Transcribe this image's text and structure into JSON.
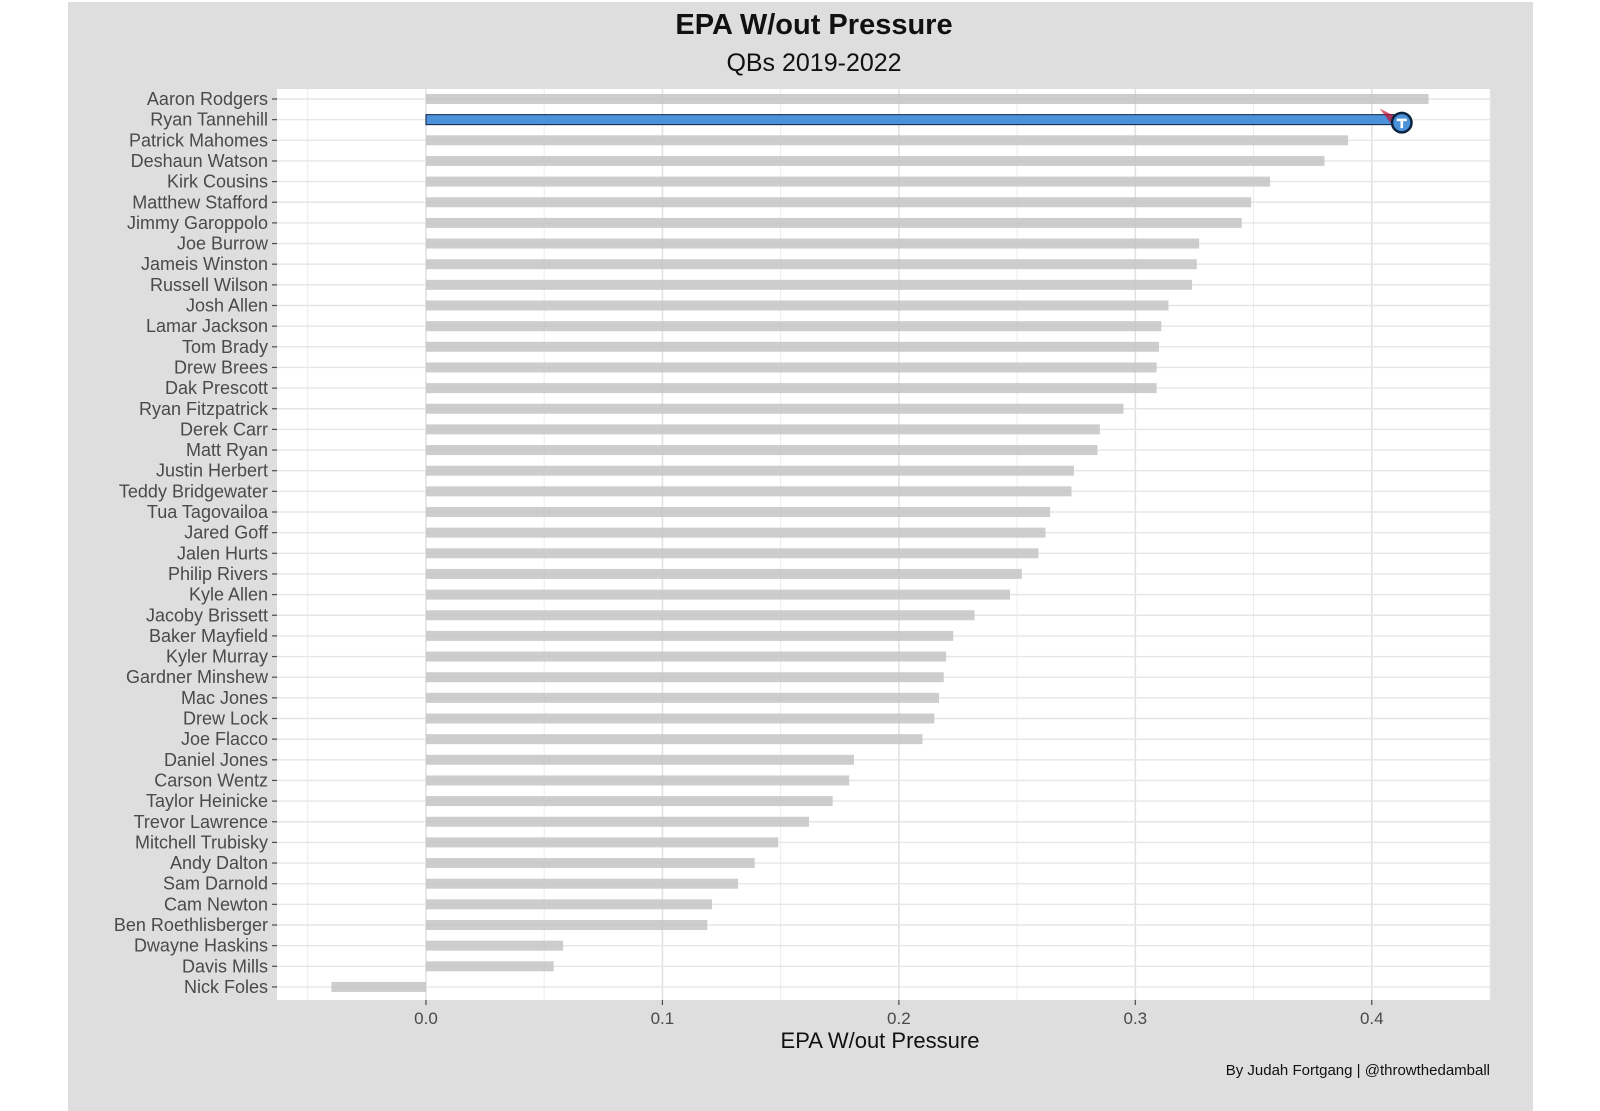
{
  "chart_data": {
    "type": "bar",
    "orientation": "horizontal",
    "title": "EPA W/out Pressure",
    "subtitle": "QBs 2019-2022",
    "xlabel": "EPA W/out Pressure",
    "ylabel": "",
    "caption": "By Judah Fortgang | @throwthedamball",
    "xlim": [
      -0.063,
      0.45
    ],
    "xticks": [
      "0.0",
      "0.1",
      "0.2",
      "0.3",
      "0.4"
    ],
    "xtick_values": [
      0.0,
      0.1,
      0.2,
      0.3,
      0.4
    ],
    "grid": true,
    "highlight": "Ryan Tannehill",
    "colors": {
      "bar": "#c4c4c4",
      "highlight": "#4b92db",
      "highlight_outline": "#0c2340",
      "panel": "#ffffff",
      "background": "#dedede"
    },
    "categories": [
      "Aaron Rodgers",
      "Ryan Tannehill",
      "Patrick Mahomes",
      "Deshaun Watson",
      "Kirk Cousins",
      "Matthew Stafford",
      "Jimmy Garoppolo",
      "Joe Burrow",
      "Jameis Winston",
      "Russell Wilson",
      "Josh Allen",
      "Lamar Jackson",
      "Tom Brady",
      "Drew Brees",
      "Dak Prescott",
      "Ryan Fitzpatrick",
      "Derek Carr",
      "Matt Ryan",
      "Justin Herbert",
      "Teddy Bridgewater",
      "Tua Tagovailoa",
      "Jared Goff",
      "Jalen Hurts",
      "Philip Rivers",
      "Kyle Allen",
      "Jacoby Brissett",
      "Baker Mayfield",
      "Kyler Murray",
      "Gardner Minshew",
      "Mac Jones",
      "Drew Lock",
      "Joe Flacco",
      "Daniel Jones",
      "Carson Wentz",
      "Taylor Heinicke",
      "Trevor Lawrence",
      "Mitchell Trubisky",
      "Andy Dalton",
      "Sam Darnold",
      "Cam Newton",
      "Ben Roethlisberger",
      "Dwayne Haskins",
      "Davis Mills",
      "Nick Foles"
    ],
    "values": [
      0.424,
      0.411,
      0.39,
      0.38,
      0.357,
      0.349,
      0.345,
      0.327,
      0.326,
      0.324,
      0.314,
      0.311,
      0.31,
      0.309,
      0.309,
      0.295,
      0.285,
      0.284,
      0.274,
      0.273,
      0.264,
      0.262,
      0.259,
      0.252,
      0.247,
      0.232,
      0.223,
      0.22,
      0.219,
      0.217,
      0.215,
      0.21,
      0.181,
      0.179,
      0.172,
      0.162,
      0.149,
      0.139,
      0.132,
      0.121,
      0.119,
      0.058,
      0.054,
      -0.04
    ]
  }
}
